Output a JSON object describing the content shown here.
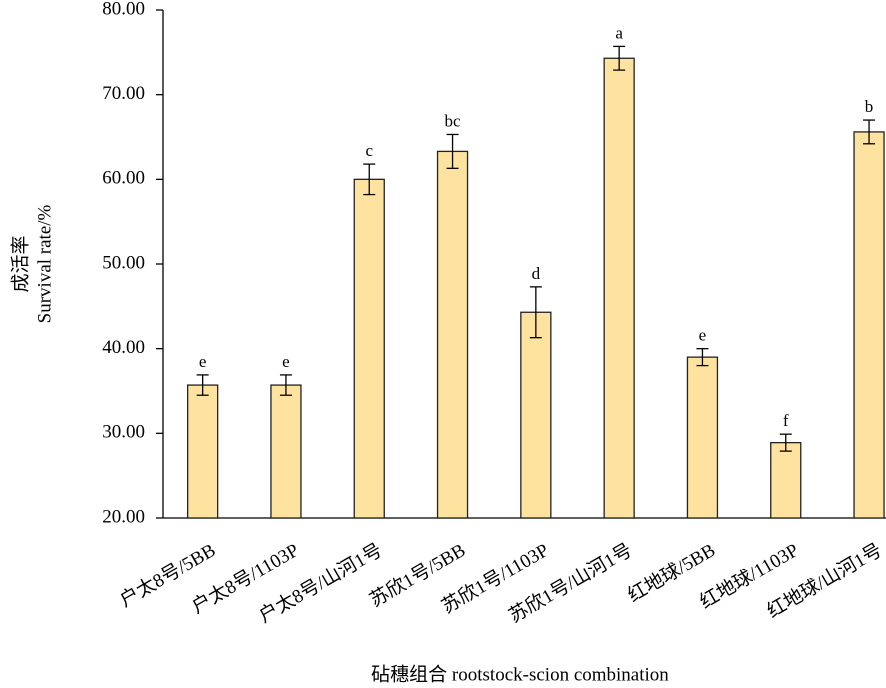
{
  "chart_data": {
    "type": "bar",
    "y_label": [
      "成活率",
      "Survival rate/%"
    ],
    "x_label": "砧穗组合 rootstock-scion combination",
    "categories": [
      "户太8号/5BB",
      "户太8号/1103P",
      "户太8号/山河1号",
      "苏欣1号/5BB",
      "苏欣1号/1103P",
      "苏欣1号/山河1号",
      "红地球/5BB",
      "红地球/1103P",
      "红地球/山河1号"
    ],
    "values": [
      35.7,
      35.7,
      60.0,
      63.3,
      44.3,
      74.3,
      39.0,
      28.9,
      65.6
    ],
    "errors": [
      1.2,
      1.2,
      1.8,
      2.0,
      3.0,
      1.4,
      1.0,
      1.0,
      1.4
    ],
    "significance": [
      "e",
      "e",
      "c",
      "bc",
      "d",
      "a",
      "e",
      "f",
      "b"
    ],
    "color": "#fde39f",
    "ylim": [
      20,
      80
    ],
    "yticks": [
      {
        "value": 20,
        "label": "20.00"
      },
      {
        "value": 30,
        "label": "30.00"
      },
      {
        "value": 40,
        "label": "40.00"
      },
      {
        "value": 50,
        "label": "50.00"
      },
      {
        "value": 60,
        "label": "60.00"
      },
      {
        "value": 70,
        "label": "70.00"
      },
      {
        "value": 80,
        "label": "80.00"
      }
    ]
  }
}
